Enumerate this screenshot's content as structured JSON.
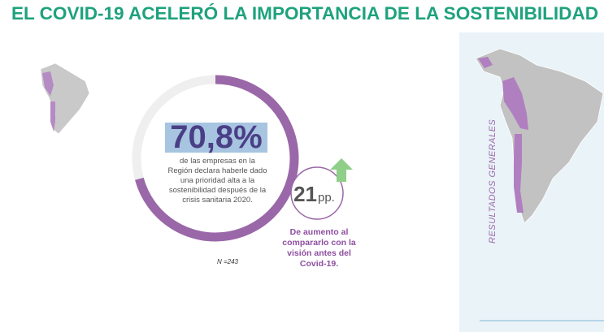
{
  "title": "EL COVID-19 ACELERÓ LA IMPORTANCIA DE LA SOSTENIBILIDAD",
  "main_stat": {
    "value": 70.8,
    "label": "70,8%",
    "description": "de las empresas en la Región declara haberle dado una prioridad alta a la sostenibilidad después de la crisis sanitaria 2020."
  },
  "sample": "N =243",
  "change": {
    "value": 21,
    "unit": "pp.",
    "description": "De aumento al compararlo con la visión antes del Covid-19."
  },
  "side_label": "RESULTADOS GENERALES"
}
